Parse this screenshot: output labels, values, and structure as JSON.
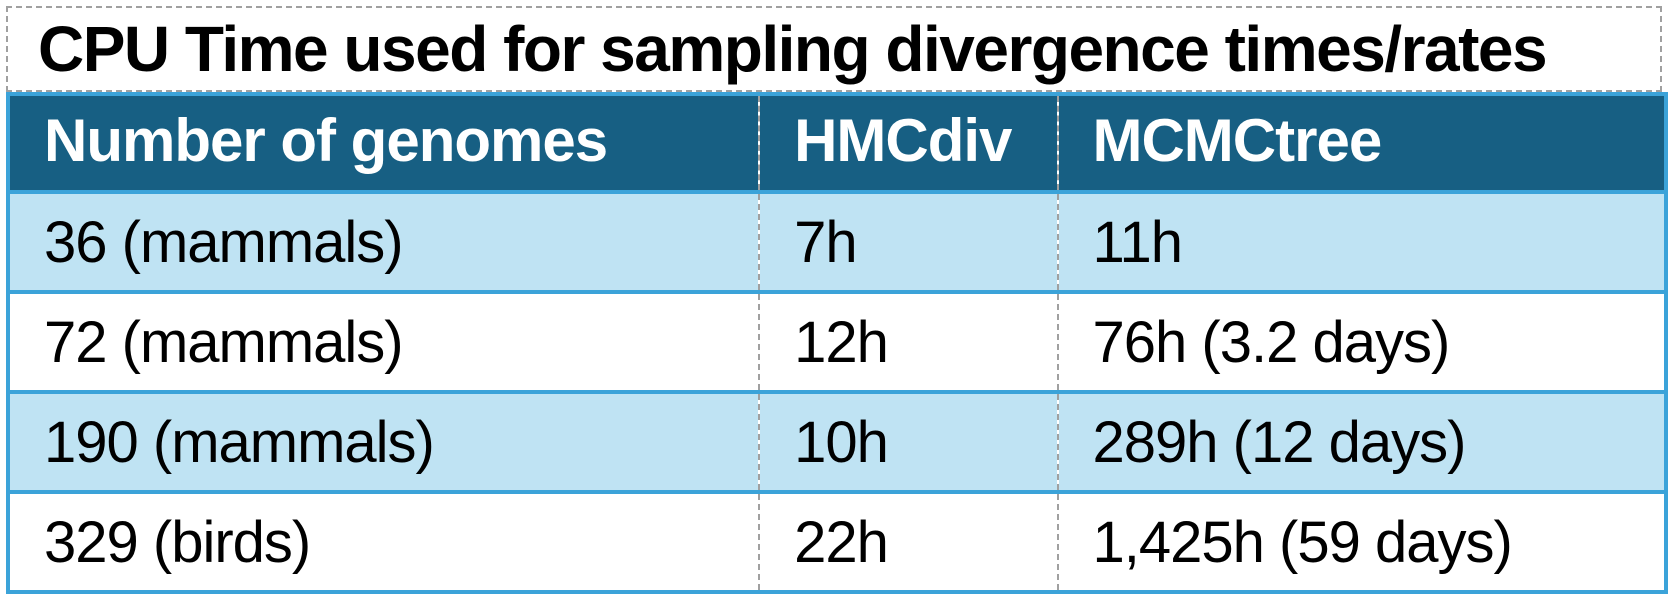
{
  "title": "CPU Time used for sampling divergence times/rates",
  "chart_data": {
    "type": "table",
    "title": "CPU Time used for sampling divergence times/rates",
    "columns": [
      "Number of genomes",
      "HMCdiv",
      "MCMCtree"
    ],
    "rows": [
      [
        "36 (mammals)",
        "7h",
        "11h"
      ],
      [
        "72 (mammals)",
        "12h",
        "76h (3.2 days)"
      ],
      [
        "190 (mammals)",
        "10h",
        "289h (12 days)"
      ],
      [
        "329 (birds)",
        "22h",
        "1,425h (59 days)"
      ]
    ],
    "units": "hours of CPU time",
    "layout_hints": {
      "header_style": "dark teal background, white bold text",
      "row_striping": "alternating light blue / white starting with light blue",
      "column_dividers": "gray dashed vertical lines",
      "row_dividers": "solid blue horizontal lines",
      "title_box": "white box with gray dashed selection border above table"
    }
  },
  "colors": {
    "header_bg": "#175F83",
    "row_alt": "#BFE3F3",
    "border_blue": "#3BA3D9",
    "dash_gray": "#A0A0A0",
    "title_color": "#000000",
    "cell_color": "#000000",
    "header_text": "#FFFFFF",
    "page_bg": "#FFFFFF"
  }
}
